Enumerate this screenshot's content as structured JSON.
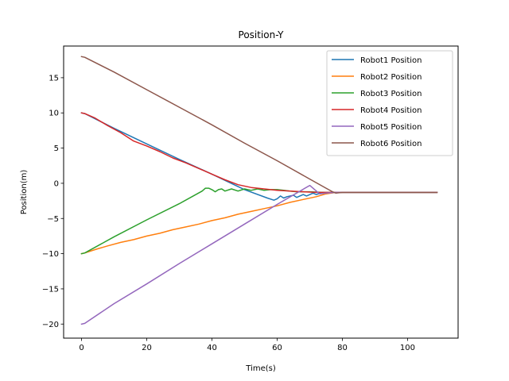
{
  "chart_data": {
    "type": "line",
    "title": "Position-Y",
    "xlabel": "Time(s)",
    "ylabel": "Position(m)",
    "xlim": [
      -5.5,
      115.5
    ],
    "ylim": [
      -22,
      19.5
    ],
    "xticks": [
      0,
      20,
      40,
      60,
      80,
      100
    ],
    "yticks": [
      -20,
      -15,
      -10,
      -5,
      0,
      5,
      10,
      15
    ],
    "ytick_labels": [
      "−20",
      "−15",
      "−10",
      "−5",
      "0",
      "5",
      "10",
      "15"
    ],
    "legend_position": "top-right",
    "grid": false,
    "series": [
      {
        "name": "Robot1 Position",
        "color": "#1f77b4",
        "points": [
          [
            0,
            10
          ],
          [
            1,
            9.9
          ],
          [
            10,
            7.8
          ],
          [
            20,
            5.6
          ],
          [
            30,
            3.4
          ],
          [
            40,
            1.3
          ],
          [
            50,
            -0.9
          ],
          [
            57,
            -2.1
          ],
          [
            59,
            -2.4
          ],
          [
            60,
            -2.2
          ],
          [
            61,
            -1.8
          ],
          [
            62,
            -2.1
          ],
          [
            63,
            -1.9
          ],
          [
            65,
            -1.7
          ],
          [
            66,
            -2.0
          ],
          [
            68,
            -1.6
          ],
          [
            69,
            -1.8
          ],
          [
            71,
            -1.4
          ],
          [
            72,
            -1.6
          ],
          [
            74,
            -1.3
          ],
          [
            76,
            -1.4
          ],
          [
            78,
            -1.3
          ],
          [
            82,
            -1.3
          ],
          [
            100,
            -1.3
          ],
          [
            109,
            -1.3
          ]
        ]
      },
      {
        "name": "Robot2 Position",
        "color": "#ff7f0e",
        "points": [
          [
            0,
            -10
          ],
          [
            1,
            -9.9
          ],
          [
            5,
            -9.3
          ],
          [
            8,
            -8.9
          ],
          [
            12,
            -8.4
          ],
          [
            16,
            -8.0
          ],
          [
            20,
            -7.5
          ],
          [
            24,
            -7.1
          ],
          [
            28,
            -6.6
          ],
          [
            32,
            -6.2
          ],
          [
            36,
            -5.8
          ],
          [
            40,
            -5.3
          ],
          [
            44,
            -4.9
          ],
          [
            48,
            -4.4
          ],
          [
            52,
            -4.0
          ],
          [
            56,
            -3.6
          ],
          [
            60,
            -3.2
          ],
          [
            64,
            -2.7
          ],
          [
            68,
            -2.3
          ],
          [
            72,
            -1.9
          ],
          [
            75,
            -1.5
          ],
          [
            78,
            -1.3
          ],
          [
            82,
            -1.3
          ],
          [
            100,
            -1.3
          ],
          [
            109,
            -1.3
          ]
        ]
      },
      {
        "name": "Robot3 Position",
        "color": "#2ca02c",
        "points": [
          [
            0,
            -10
          ],
          [
            1,
            -9.9
          ],
          [
            10,
            -7.6
          ],
          [
            20,
            -5.2
          ],
          [
            30,
            -2.9
          ],
          [
            37,
            -1.1
          ],
          [
            38,
            -0.7
          ],
          [
            39,
            -0.7
          ],
          [
            40,
            -0.9
          ],
          [
            41,
            -1.2
          ],
          [
            42,
            -0.9
          ],
          [
            43,
            -0.8
          ],
          [
            44,
            -1.1
          ],
          [
            46,
            -0.8
          ],
          [
            48,
            -1.1
          ],
          [
            50,
            -0.8
          ],
          [
            52,
            -1.0
          ],
          [
            54,
            -0.8
          ],
          [
            56,
            -1.0
          ],
          [
            58,
            -0.9
          ],
          [
            60,
            -0.9
          ],
          [
            62,
            -1.0
          ],
          [
            64,
            -1.1
          ],
          [
            66,
            -1.2
          ],
          [
            70,
            -1.2
          ],
          [
            74,
            -1.3
          ],
          [
            78,
            -1.3
          ],
          [
            82,
            -1.3
          ],
          [
            100,
            -1.3
          ],
          [
            109,
            -1.3
          ]
        ]
      },
      {
        "name": "Robot4 Position",
        "color": "#d62728",
        "points": [
          [
            0,
            10
          ],
          [
            1,
            9.9
          ],
          [
            4,
            9.3
          ],
          [
            8,
            8.2
          ],
          [
            12,
            7.2
          ],
          [
            16,
            6.0
          ],
          [
            20,
            5.3
          ],
          [
            24,
            4.5
          ],
          [
            28,
            3.6
          ],
          [
            32,
            2.9
          ],
          [
            36,
            2.1
          ],
          [
            40,
            1.3
          ],
          [
            44,
            0.5
          ],
          [
            48,
            -0.2
          ],
          [
            52,
            -0.6
          ],
          [
            56,
            -0.8
          ],
          [
            60,
            -1.0
          ],
          [
            64,
            -1.1
          ],
          [
            68,
            -1.2
          ],
          [
            72,
            -1.3
          ],
          [
            76,
            -1.3
          ],
          [
            80,
            -1.3
          ],
          [
            100,
            -1.3
          ],
          [
            109,
            -1.3
          ]
        ]
      },
      {
        "name": "Robot5 Position",
        "color": "#9467bd",
        "points": [
          [
            0,
            -20
          ],
          [
            1,
            -19.9
          ],
          [
            10,
            -17.1
          ],
          [
            20,
            -14.3
          ],
          [
            30,
            -11.4
          ],
          [
            40,
            -8.6
          ],
          [
            50,
            -5.8
          ],
          [
            60,
            -3.0
          ],
          [
            70,
            -0.3
          ],
          [
            73,
            -1.5
          ],
          [
            75,
            -1.4
          ],
          [
            78,
            -1.3
          ],
          [
            82,
            -1.3
          ],
          [
            100,
            -1.3
          ],
          [
            109,
            -1.3
          ]
        ]
      },
      {
        "name": "Robot6 Position",
        "color": "#8c564b",
        "points": [
          [
            0,
            18
          ],
          [
            1,
            17.9
          ],
          [
            10,
            15.8
          ],
          [
            20,
            13.3
          ],
          [
            30,
            10.8
          ],
          [
            40,
            8.3
          ],
          [
            50,
            5.7
          ],
          [
            60,
            3.2
          ],
          [
            70,
            0.6
          ],
          [
            75,
            -0.7
          ],
          [
            77,
            -1.2
          ],
          [
            78,
            -1.4
          ],
          [
            80,
            -1.3
          ],
          [
            82,
            -1.3
          ],
          [
            100,
            -1.3
          ],
          [
            109,
            -1.3
          ]
        ]
      }
    ]
  }
}
